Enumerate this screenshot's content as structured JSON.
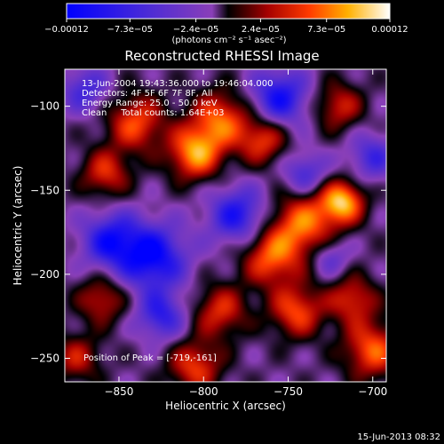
{
  "chart_data": {
    "type": "heatmap",
    "title": "Reconstructed RHESSI Image",
    "xlabel": "Heliocentric X (arcsec)",
    "ylabel": "Heliocentric Y (arcsec)",
    "xlim": [
      -882,
      -692
    ],
    "ylim": [
      -264,
      -78
    ],
    "xticks": [
      -850,
      -800,
      -750,
      -700
    ],
    "yticks": [
      -100,
      -150,
      -200,
      -250
    ],
    "xtick_labels": [
      "−850",
      "−800",
      "−750",
      "−700"
    ],
    "ytick_labels": [
      "−100",
      "−150",
      "−200",
      "−250"
    ],
    "colorbar": {
      "range": [
        -0.00012,
        0.00012
      ],
      "ticks": [
        -0.00012,
        -7.3e-05,
        -2.4e-05,
        2.4e-05,
        7.3e-05,
        0.00012
      ],
      "tick_labels": [
        "−0.00012",
        "−7.3e−05",
        "−2.4e−05",
        "2.4e−05",
        "7.3e−05",
        "0.00012"
      ],
      "units_label": "(photons cm⁻² s⁻¹ asec⁻²)"
    },
    "annotations": [
      "13-Jun-2004 19:43:36.000 to 19:46:04.000",
      "Detectors: 4F 5F 6F 7F 8F, All",
      "Energy Range: 25.0 - 50.0 keV",
      "Clean     Total counts: 1.64E+03"
    ],
    "peak_label": "Position of Peak = [-719,-161]",
    "peak": [
      -719,
      -161
    ],
    "sources": [
      {
        "x": -718,
        "y": -157,
        "amp": 1.0,
        "sigma": 9
      },
      {
        "x": -741,
        "y": -170,
        "amp": 0.8,
        "sigma": 13
      },
      {
        "x": -805,
        "y": -128,
        "amp": 0.9,
        "sigma": 11
      },
      {
        "x": -790,
        "y": -108,
        "amp": 0.75,
        "sigma": 12
      },
      {
        "x": -840,
        "y": -110,
        "amp": 0.7,
        "sigma": 12
      },
      {
        "x": -858,
        "y": -140,
        "amp": 0.6,
        "sigma": 10
      },
      {
        "x": -765,
        "y": -120,
        "amp": 0.65,
        "sigma": 10
      },
      {
        "x": -760,
        "y": -190,
        "amp": 0.75,
        "sigma": 12
      },
      {
        "x": -745,
        "y": -222,
        "amp": 0.7,
        "sigma": 11
      },
      {
        "x": -712,
        "y": -215,
        "amp": 0.6,
        "sigma": 10
      },
      {
        "x": -700,
        "y": -245,
        "amp": 0.75,
        "sigma": 12
      },
      {
        "x": -720,
        "y": -100,
        "amp": 0.55,
        "sigma": 10
      },
      {
        "x": -790,
        "y": -222,
        "amp": 0.6,
        "sigma": 11
      },
      {
        "x": -805,
        "y": -255,
        "amp": 0.65,
        "sigma": 11
      },
      {
        "x": -860,
        "y": -215,
        "amp": 0.55,
        "sigma": 10
      },
      {
        "x": -875,
        "y": -250,
        "amp": 0.5,
        "sigma": 10
      },
      {
        "x": -830,
        "y": -190,
        "amp": -0.85,
        "sigma": 14
      },
      {
        "x": -855,
        "y": -180,
        "amp": -0.7,
        "sigma": 12
      },
      {
        "x": -780,
        "y": -165,
        "amp": -0.7,
        "sigma": 12
      },
      {
        "x": -755,
        "y": -95,
        "amp": -0.75,
        "sigma": 12
      },
      {
        "x": -825,
        "y": -225,
        "amp": -0.6,
        "sigma": 10
      },
      {
        "x": -740,
        "y": -140,
        "amp": -0.5,
        "sigma": 9
      },
      {
        "x": -870,
        "y": -90,
        "amp": -0.5,
        "sigma": 10
      },
      {
        "x": -700,
        "y": -130,
        "amp": -0.5,
        "sigma": 10
      },
      {
        "x": -725,
        "y": -190,
        "amp": -0.4,
        "sigma": 8
      }
    ]
  },
  "footer": {
    "timestamp": "15-Jun-2013 08:32"
  }
}
